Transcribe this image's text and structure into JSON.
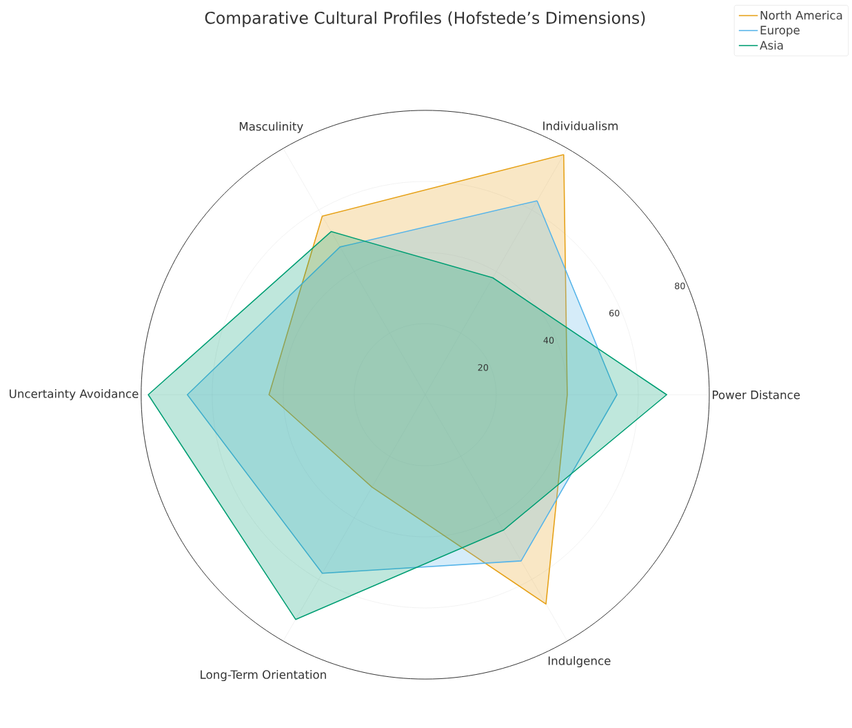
{
  "chart_data": {
    "type": "radar",
    "title": "Comparative Cultural Profiles (Hofstede’s Dimensions)",
    "categories": [
      "Individualism",
      "Power Distance",
      "Indulgence",
      "Long-Term Orientation",
      "Uncertainty Avoidance",
      "Masculinity"
    ],
    "series": [
      {
        "name": "North America",
        "color": "#e6a117",
        "values": [
          78,
          40,
          68,
          30,
          44,
          58
        ]
      },
      {
        "name": "Europe",
        "color": "#56b4e9",
        "values": [
          63,
          54,
          54,
          58,
          67,
          48
        ]
      },
      {
        "name": "Asia",
        "color": "#009e73",
        "values": [
          38,
          68,
          44,
          73,
          78,
          53
        ]
      }
    ],
    "ylim": [
      0,
      80
    ],
    "yticks": [
      20,
      40,
      60,
      80
    ],
    "grid": true,
    "legend": "top right"
  }
}
